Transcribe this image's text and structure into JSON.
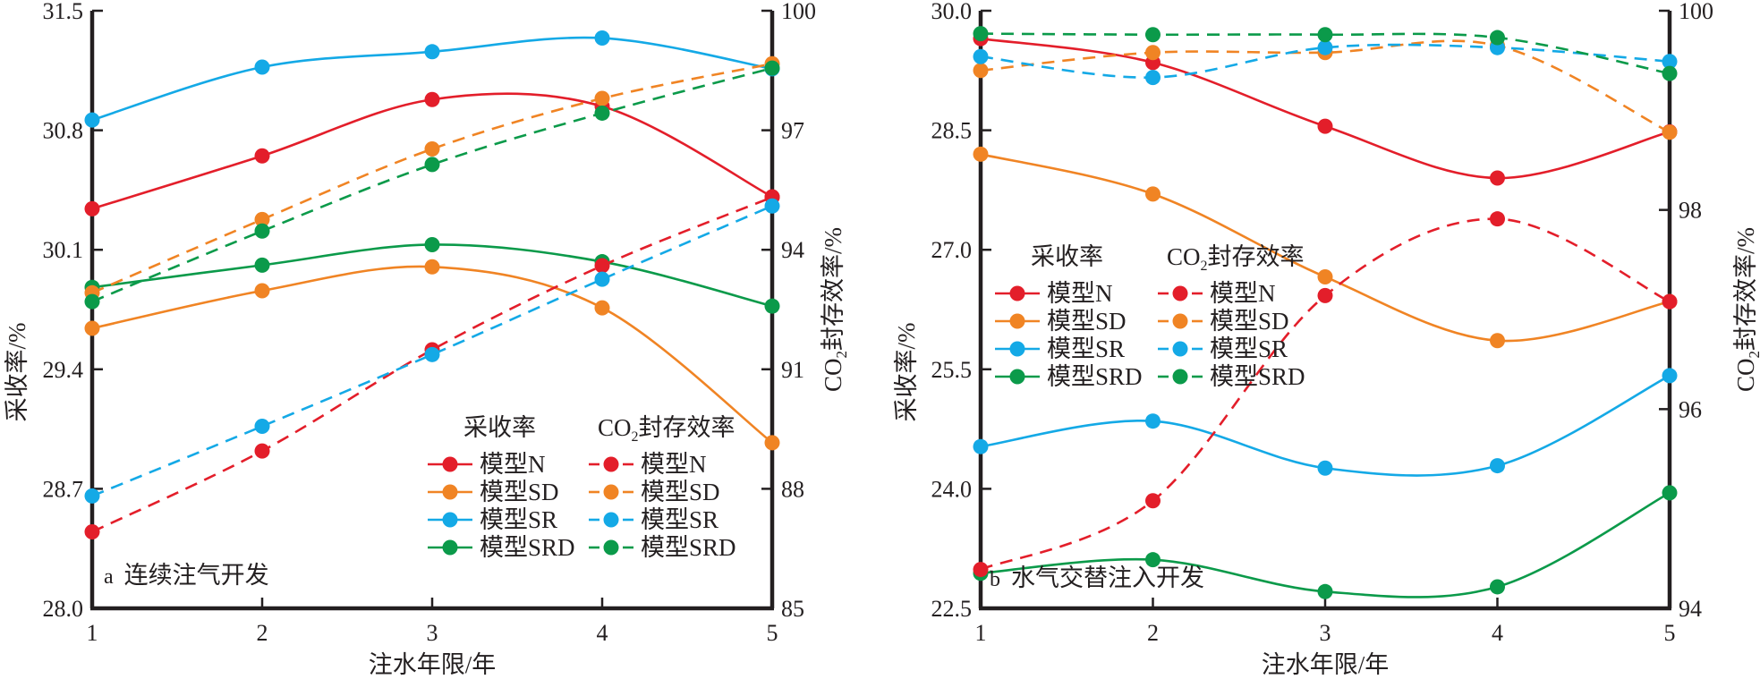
{
  "chart_data": [
    {
      "type": "line",
      "panel_label": "a",
      "title": "连续注气开发",
      "xlabel": "注水年限/年",
      "ylabel_left": "采收率/%",
      "ylabel_right_prefix": "CO",
      "ylabel_right_sub": "2",
      "ylabel_right_suffix": "封存效率/%",
      "x": [
        1,
        2,
        3,
        4,
        5
      ],
      "x_ticks": [
        "1",
        "2",
        "3",
        "4",
        "5"
      ],
      "ylim_left": [
        28.0,
        31.5
      ],
      "y_ticks_left": [
        "28.0",
        "28.7",
        "29.4",
        "30.1",
        "30.8",
        "31.5"
      ],
      "ylim_right": [
        85,
        100
      ],
      "y_ticks_right": [
        "85",
        "88",
        "91",
        "94",
        "97",
        "100"
      ],
      "grid": false,
      "legend_position": "bottom-right",
      "legend_headers": {
        "left": "采收率",
        "right_prefix": "CO",
        "right_sub": "2",
        "right_suffix": "封存效率"
      },
      "series": [
        {
          "name": "模型N",
          "group": "采收率",
          "axis": "left",
          "style": "solid",
          "color": "#e31e2a",
          "values": [
            30.34,
            30.65,
            30.98,
            30.94,
            30.41
          ]
        },
        {
          "name": "模型SD",
          "group": "采收率",
          "axis": "left",
          "style": "solid",
          "color": "#f08424",
          "values": [
            29.64,
            29.86,
            30.0,
            29.76,
            28.97
          ]
        },
        {
          "name": "模型SR",
          "group": "采收率",
          "axis": "left",
          "style": "solid",
          "color": "#14a9e6",
          "values": [
            30.86,
            31.17,
            31.26,
            31.34,
            31.16
          ]
        },
        {
          "name": "模型SRD",
          "group": "采收率",
          "axis": "left",
          "style": "solid",
          "color": "#0b9a4a",
          "values": [
            29.88,
            30.01,
            30.13,
            30.03,
            29.77
          ]
        },
        {
          "name": "模型N",
          "group": "CO2封存效率",
          "axis": "right",
          "style": "dashed",
          "color": "#e31e2a",
          "values": [
            86.92,
            88.95,
            91.49,
            93.6,
            95.32
          ]
        },
        {
          "name": "模型SD",
          "group": "CO2封存效率",
          "axis": "right",
          "style": "dashed",
          "color": "#f08424",
          "values": [
            92.92,
            94.76,
            96.53,
            97.8,
            98.67
          ]
        },
        {
          "name": "模型SR",
          "group": "CO2封存效率",
          "axis": "right",
          "style": "dashed",
          "color": "#14a9e6",
          "values": [
            87.82,
            89.57,
            91.37,
            93.26,
            95.1
          ]
        },
        {
          "name": "模型SRD",
          "group": "CO2封存效率",
          "axis": "right",
          "style": "dashed",
          "color": "#0b9a4a",
          "values": [
            92.7,
            94.47,
            96.14,
            97.43,
            98.56
          ]
        }
      ]
    },
    {
      "type": "line",
      "panel_label": "b",
      "title": "水气交替注入开发",
      "xlabel": "注水年限/年",
      "ylabel_left": "采收率/%",
      "ylabel_right_prefix": "CO",
      "ylabel_right_sub": "2",
      "ylabel_right_suffix": "封存效率/%",
      "x": [
        1,
        2,
        3,
        4,
        5
      ],
      "x_ticks": [
        "1",
        "2",
        "3",
        "4",
        "5"
      ],
      "ylim_left": [
        22.5,
        30.0
      ],
      "y_ticks_left": [
        "22.5",
        "24.0",
        "25.5",
        "27.0",
        "28.5",
        "30.0"
      ],
      "ylim_right": [
        94,
        100
      ],
      "y_ticks_right": [
        "94",
        "96",
        "98",
        "100"
      ],
      "grid": false,
      "legend_position": "center-left",
      "legend_headers": {
        "left": "采收率",
        "right_prefix": "CO",
        "right_sub": "2",
        "right_suffix": "封存效率"
      },
      "series": [
        {
          "name": "模型N",
          "group": "采收率",
          "axis": "left",
          "style": "solid",
          "color": "#e31e2a",
          "values": [
            29.65,
            29.35,
            28.55,
            27.9,
            28.48
          ]
        },
        {
          "name": "模型SD",
          "group": "采收率",
          "axis": "left",
          "style": "solid",
          "color": "#f08424",
          "values": [
            28.2,
            27.7,
            26.66,
            25.86,
            26.35
          ]
        },
        {
          "name": "模型SR",
          "group": "采收率",
          "axis": "left",
          "style": "solid",
          "color": "#14a9e6",
          "values": [
            24.53,
            24.85,
            24.26,
            24.29,
            25.42
          ]
        },
        {
          "name": "模型SRD",
          "group": "采收率",
          "axis": "left",
          "style": "solid",
          "color": "#0b9a4a",
          "values": [
            22.94,
            23.11,
            22.71,
            22.77,
            23.95
          ]
        },
        {
          "name": "模型N",
          "group": "CO2封存效率",
          "axis": "right",
          "style": "dashed",
          "color": "#e31e2a",
          "values": [
            94.39,
            95.08,
            97.14,
            97.91,
            97.08
          ]
        },
        {
          "name": "模型SD",
          "group": "CO2封存效率",
          "axis": "right",
          "style": "dashed",
          "color": "#f08424",
          "values": [
            99.4,
            99.58,
            99.58,
            99.65,
            98.78
          ]
        },
        {
          "name": "模型SR",
          "group": "CO2封存效率",
          "axis": "right",
          "style": "dashed",
          "color": "#14a9e6",
          "values": [
            99.54,
            99.33,
            99.63,
            99.63,
            99.49
          ]
        },
        {
          "name": "模型SRD",
          "group": "CO2封存效率",
          "axis": "right",
          "style": "dashed",
          "color": "#0b9a4a",
          "values": [
            99.77,
            99.76,
            99.76,
            99.73,
            99.37
          ]
        }
      ]
    }
  ]
}
